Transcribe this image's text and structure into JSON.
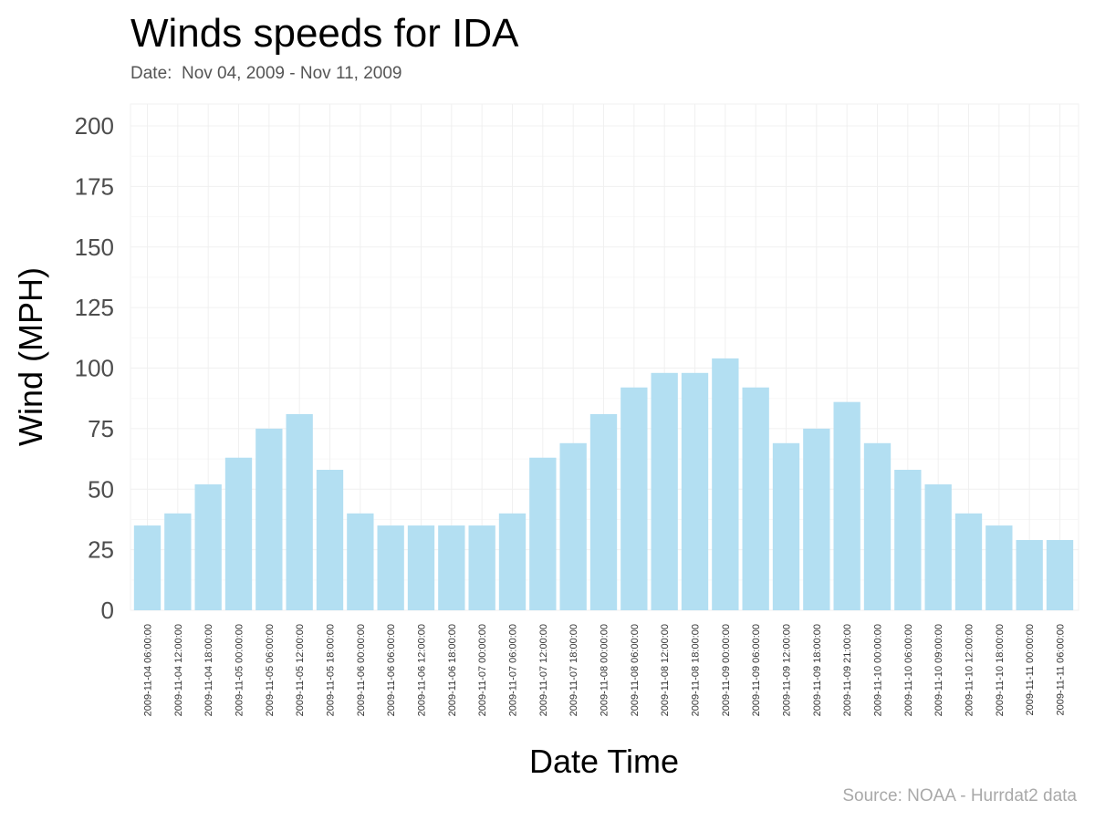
{
  "chart_data": {
    "type": "bar",
    "title": "Winds speeds for IDA",
    "subtitle": "Date:  Nov 04, 2009 - Nov 11, 2009",
    "caption": "Source: NOAA - Hurrdat2 data",
    "xlabel": "Date Time",
    "ylabel": "Wind (MPH)",
    "ylim": [
      0,
      200
    ],
    "yticks": [
      0,
      25,
      50,
      75,
      100,
      125,
      150,
      175,
      200
    ],
    "grid": true,
    "bar_color": "#b3dff2",
    "categories": [
      "2009-11-04 06:00:00",
      "2009-11-04 12:00:00",
      "2009-11-04 18:00:00",
      "2009-11-05 00:00:00",
      "2009-11-05 06:00:00",
      "2009-11-05 12:00:00",
      "2009-11-05 18:00:00",
      "2009-11-06 00:00:00",
      "2009-11-06 06:00:00",
      "2009-11-06 12:00:00",
      "2009-11-06 18:00:00",
      "2009-11-07 00:00:00",
      "2009-11-07 06:00:00",
      "2009-11-07 12:00:00",
      "2009-11-07 18:00:00",
      "2009-11-08 00:00:00",
      "2009-11-08 06:00:00",
      "2009-11-08 12:00:00",
      "2009-11-08 18:00:00",
      "2009-11-09 00:00:00",
      "2009-11-09 06:00:00",
      "2009-11-09 12:00:00",
      "2009-11-09 18:00:00",
      "2009-11-09 21:00:00",
      "2009-11-10 00:00:00",
      "2009-11-10 06:00:00",
      "2009-11-10 09:00:00",
      "2009-11-10 12:00:00",
      "2009-11-10 18:00:00",
      "2009-11-11 00:00:00",
      "2009-11-11 06:00:00"
    ],
    "values": [
      35,
      40,
      52,
      63,
      75,
      81,
      58,
      40,
      35,
      35,
      35,
      35,
      40,
      63,
      69,
      81,
      92,
      98,
      98,
      104,
      92,
      69,
      75,
      86,
      69,
      58,
      52,
      40,
      35,
      29,
      29
    ]
  }
}
